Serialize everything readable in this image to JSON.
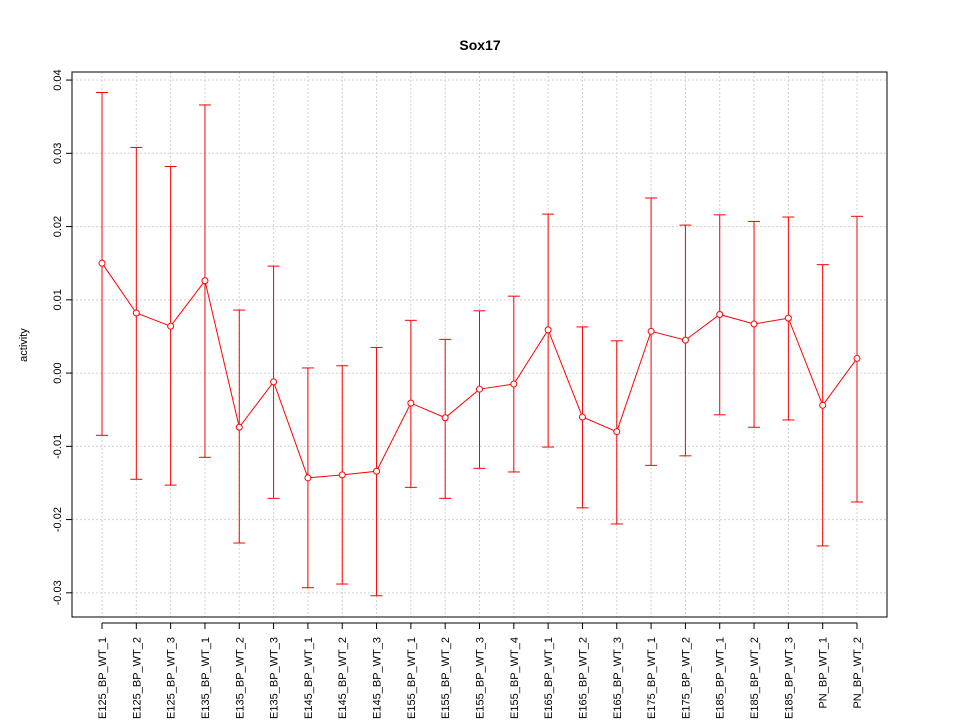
{
  "chart_data": {
    "type": "line",
    "title": "Sox17",
    "xlabel": "",
    "ylabel": "activity",
    "ylim": [
      -0.0333,
      0.0411
    ],
    "yticks": [
      -0.03,
      -0.02,
      -0.01,
      0.0,
      0.01,
      0.02,
      0.03,
      0.04
    ],
    "ytick_labels": [
      "-0.03",
      "-0.02",
      "-0.01",
      "0.00",
      "0.01",
      "0.02",
      "0.03",
      "0.04"
    ],
    "grid": true,
    "color": "#ff0000",
    "categories": [
      "E125_BP_WT_1",
      "E125_BP_WT_2",
      "E125_BP_WT_3",
      "E135_BP_WT_1",
      "E135_BP_WT_2",
      "E135_BP_WT_3",
      "E145_BP_WT_1",
      "E145_BP_WT_2",
      "E145_BP_WT_3",
      "E155_BP_WT_1",
      "E155_BP_WT_2",
      "E155_BP_WT_3",
      "E155_BP_WT_4",
      "E165_BP_WT_1",
      "E165_BP_WT_2",
      "E165_BP_WT_3",
      "E175_BP_WT_1",
      "E175_BP_WT_2",
      "E185_BP_WT_1",
      "E185_BP_WT_2",
      "E185_BP_WT_3",
      "PN_BP_WT_1",
      "PN_BP_WT_2"
    ],
    "values": [
      0.015,
      0.0082,
      0.0064,
      0.0126,
      -0.0074,
      -0.0012,
      -0.0143,
      -0.0139,
      -0.0134,
      -0.0041,
      -0.0061,
      -0.0022,
      -0.0015,
      0.0059,
      -0.006,
      -0.008,
      0.0057,
      0.0045,
      0.008,
      0.0067,
      0.0075,
      -0.0044,
      0.002
    ],
    "upper": [
      0.0383,
      0.0308,
      0.0282,
      0.0366,
      0.0086,
      0.0146,
      0.0007,
      0.001,
      0.0035,
      0.0072,
      0.0046,
      0.0085,
      0.0105,
      0.0217,
      0.0063,
      0.0044,
      0.0239,
      0.0202,
      0.0216,
      0.0207,
      0.0213,
      0.0148,
      0.0214
    ],
    "lower": [
      -0.0085,
      -0.0145,
      -0.0153,
      -0.0115,
      -0.0232,
      -0.0171,
      -0.0293,
      -0.0288,
      -0.0304,
      -0.0156,
      -0.0171,
      -0.013,
      -0.0135,
      -0.0101,
      -0.0184,
      -0.0206,
      -0.0126,
      -0.0113,
      -0.0057,
      -0.0074,
      -0.0064,
      -0.0236,
      -0.0176
    ]
  }
}
